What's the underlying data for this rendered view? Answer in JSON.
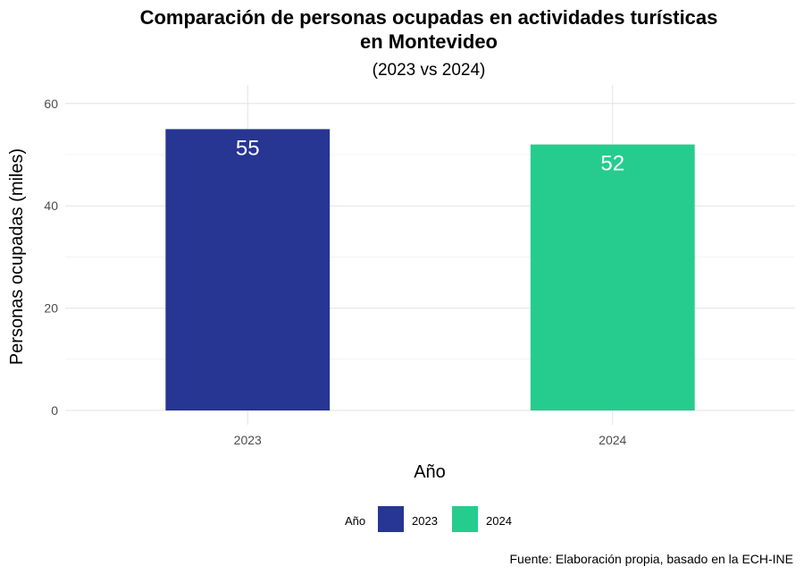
{
  "chart_data": {
    "type": "bar",
    "title_lines": [
      "Comparación de personas ocupadas en actividades turísticas",
      "en Montevideo"
    ],
    "subtitle": "(2023 vs 2024)",
    "categories": [
      "2023",
      "2024"
    ],
    "values": [
      55,
      52
    ],
    "colors": [
      "#273593",
      "#26cc8e"
    ],
    "xlabel": "Año",
    "ylabel": "Personas ocupadas (miles)",
    "ylim": [
      0,
      62
    ],
    "yticks": [
      0,
      20,
      40,
      60
    ],
    "grid": true,
    "legend": {
      "title": "Año",
      "placement": "bottom",
      "entries": [
        {
          "label": "2023",
          "color": "#273593"
        },
        {
          "label": "2024",
          "color": "#26cc8e"
        }
      ]
    },
    "caption": "Fuente: Elaboración propia, basado en la ECH-INE"
  }
}
